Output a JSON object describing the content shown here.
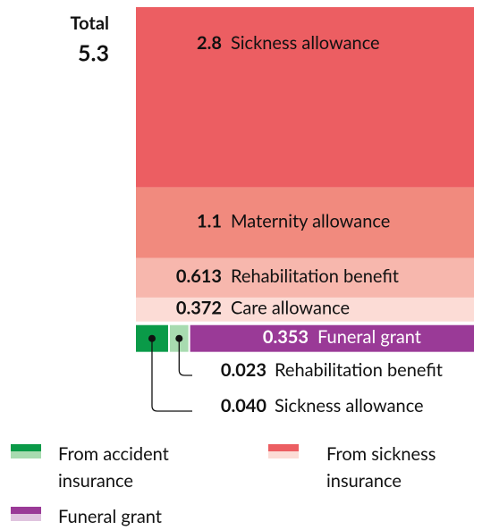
{
  "chart_data": {
    "type": "bar",
    "title": "Total",
    "total": 5.3,
    "stack": [
      {
        "name": "Sickness allowance",
        "value": 2.8,
        "color": "#ec5e62"
      },
      {
        "name": "Maternity allowance",
        "value": 1.1,
        "color": "#f18a7e"
      },
      {
        "name": "Rehabilitation benefit",
        "value": 0.613,
        "color": "#f7b7ad"
      },
      {
        "name": "Care allowance",
        "value": 0.372,
        "color": "#fcdcd6"
      }
    ],
    "row": [
      {
        "name": "Sickness allowance",
        "value": 0.04,
        "label": "0.040",
        "color": "#0a9a48"
      },
      {
        "name": "Rehabilitation benefit",
        "value": 0.023,
        "color": "#a8dbb0"
      },
      {
        "name": "Funeral grant",
        "value": 0.353,
        "color": "#9a3a97"
      }
    ],
    "legend": [
      {
        "name": "From accident insurance",
        "colors": [
          "#0a9a48",
          "#a8dbb0"
        ]
      },
      {
        "name": "From sickness insurance",
        "colors": [
          "#ec5e62",
          "#fcdcd6"
        ]
      },
      {
        "name": "Funeral grant",
        "colors": [
          "#9a3a97",
          "#e0c4df"
        ]
      }
    ]
  }
}
